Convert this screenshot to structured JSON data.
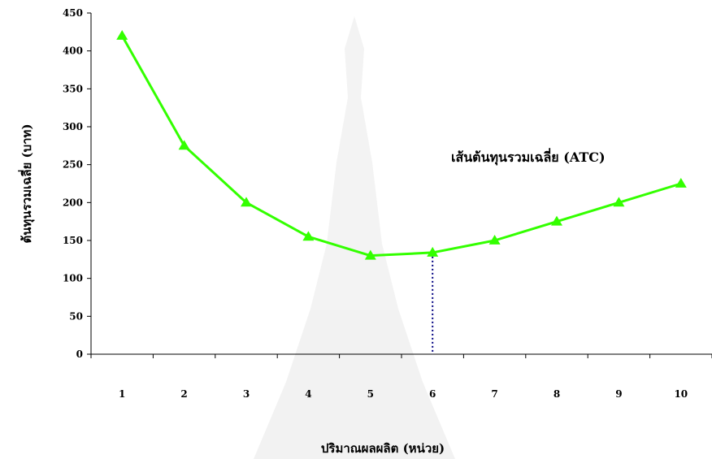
{
  "chart_data": {
    "type": "line",
    "title": "",
    "xlabel": "ปริมาณผลผลิต (หน่วย)",
    "ylabel": "ต้นทุนรวมเฉลี่ย (บาท)",
    "categories": [
      "1",
      "2",
      "3",
      "4",
      "5",
      "6",
      "7",
      "8",
      "9",
      "10"
    ],
    "series": [
      {
        "name": "เส้นต้นทุนรวมเฉลี่ย (ATC)",
        "values": [
          420,
          275,
          200,
          155,
          130,
          134,
          150,
          175,
          200,
          225
        ],
        "color": "#33ff00",
        "marker": "triangle"
      }
    ],
    "ylim": [
      0,
      450
    ],
    "yticks": [
      "0",
      "50",
      "100",
      "150",
      "200",
      "250",
      "300",
      "350",
      "400",
      "450"
    ],
    "annotation": "เส้นต้นทุนรวมเฉลี่ย (ATC)",
    "reference_line": {
      "category": "6",
      "value": 134,
      "style": "dotted",
      "color": "#000080"
    },
    "grid": false,
    "legend": "none"
  }
}
